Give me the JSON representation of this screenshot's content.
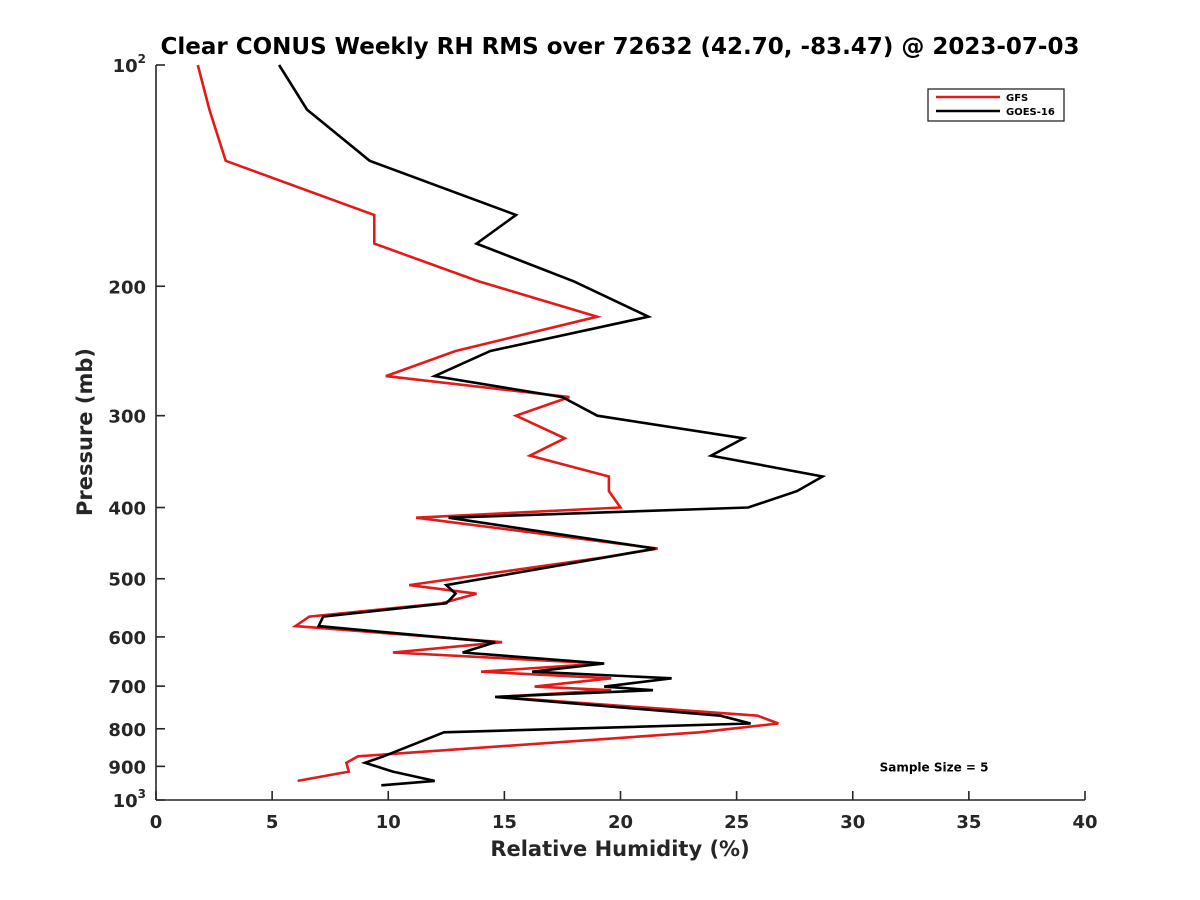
{
  "chart_data": {
    "type": "line",
    "title": "Clear CONUS Weekly RH RMS over 72632 (42.70, -83.47) @ 2023-07-03",
    "xlabel": "Relative Humidity (%)",
    "ylabel": "Pressure (mb)",
    "xlim": [
      0,
      40
    ],
    "ylim": [
      100,
      1000
    ],
    "y_scale": "log",
    "y_reversed": true,
    "grid": false,
    "legend_location": "top-right",
    "x_ticks": [
      0,
      5,
      10,
      15,
      20,
      25,
      30,
      35,
      40
    ],
    "x_tick_labels": [
      "0",
      "5",
      "10",
      "15",
      "20",
      "25",
      "30",
      "35",
      "40"
    ],
    "y_ticks": [
      {
        "value": 100,
        "base": "10",
        "exp": "2"
      },
      {
        "value": 200,
        "label": "200"
      },
      {
        "value": 300,
        "label": "300"
      },
      {
        "value": 400,
        "label": "400"
      },
      {
        "value": 500,
        "label": "500"
      },
      {
        "value": 600,
        "label": "600"
      },
      {
        "value": 700,
        "label": "700"
      },
      {
        "value": 800,
        "label": "800"
      },
      {
        "value": 900,
        "label": "900"
      },
      {
        "value": 1000,
        "base": "10",
        "exp": "3"
      }
    ],
    "series": [
      {
        "name": "GFS",
        "color": "#e41a1a",
        "points": [
          [
            1.8,
            100
          ],
          [
            2.3,
            115
          ],
          [
            3.0,
            135
          ],
          [
            9.4,
            160
          ],
          [
            9.4,
            175
          ],
          [
            13.9,
            197
          ],
          [
            19.0,
            220
          ],
          [
            12.9,
            245
          ],
          [
            9.9,
            265
          ],
          [
            17.8,
            283
          ],
          [
            15.5,
            300
          ],
          [
            17.6,
            322
          ],
          [
            16.1,
            340
          ],
          [
            19.5,
            363
          ],
          [
            19.5,
            380
          ],
          [
            20.0,
            400
          ],
          [
            11.2,
            413
          ],
          [
            21.6,
            455
          ],
          [
            19.2,
            468
          ],
          [
            10.9,
            510
          ],
          [
            13.8,
            524
          ],
          [
            12.3,
            540
          ],
          [
            6.6,
            563
          ],
          [
            6.0,
            580
          ],
          [
            14.9,
            610
          ],
          [
            10.2,
            630
          ],
          [
            19.2,
            652
          ],
          [
            14.0,
            669
          ],
          [
            19.6,
            683
          ],
          [
            16.3,
            701
          ],
          [
            19.6,
            709
          ],
          [
            14.7,
            724
          ],
          [
            25.9,
            768
          ],
          [
            26.8,
            787
          ],
          [
            23.4,
            809
          ],
          [
            8.7,
            872
          ],
          [
            8.2,
            890
          ],
          [
            8.3,
            915
          ],
          [
            6.1,
            942
          ]
        ]
      },
      {
        "name": "GOES-16",
        "color": "#000000",
        "points": [
          [
            5.3,
            100
          ],
          [
            6.5,
            115
          ],
          [
            9.2,
            135
          ],
          [
            15.5,
            160
          ],
          [
            13.8,
            175
          ],
          [
            18.0,
            197
          ],
          [
            21.2,
            220
          ],
          [
            14.4,
            245
          ],
          [
            12.0,
            265
          ],
          [
            17.5,
            283
          ],
          [
            19.0,
            300
          ],
          [
            25.3,
            322
          ],
          [
            23.9,
            340
          ],
          [
            28.7,
            363
          ],
          [
            27.6,
            380
          ],
          [
            25.5,
            400
          ],
          [
            12.6,
            413
          ],
          [
            21.5,
            455
          ],
          [
            19.3,
            468
          ],
          [
            12.5,
            510
          ],
          [
            12.9,
            524
          ],
          [
            12.5,
            540
          ],
          [
            7.2,
            563
          ],
          [
            7.0,
            580
          ],
          [
            14.6,
            610
          ],
          [
            13.2,
            630
          ],
          [
            19.3,
            652
          ],
          [
            16.2,
            669
          ],
          [
            22.2,
            683
          ],
          [
            19.3,
            701
          ],
          [
            21.4,
            709
          ],
          [
            14.6,
            724
          ],
          [
            24.3,
            768
          ],
          [
            25.6,
            787
          ],
          [
            12.4,
            809
          ],
          [
            9.8,
            872
          ],
          [
            9.0,
            890
          ],
          [
            10.2,
            915
          ],
          [
            12.0,
            942
          ],
          [
            9.7,
            955
          ]
        ]
      }
    ],
    "annotations": [
      {
        "text": "Sample Size = 5",
        "x": 33.5,
        "y": 900
      }
    ]
  }
}
